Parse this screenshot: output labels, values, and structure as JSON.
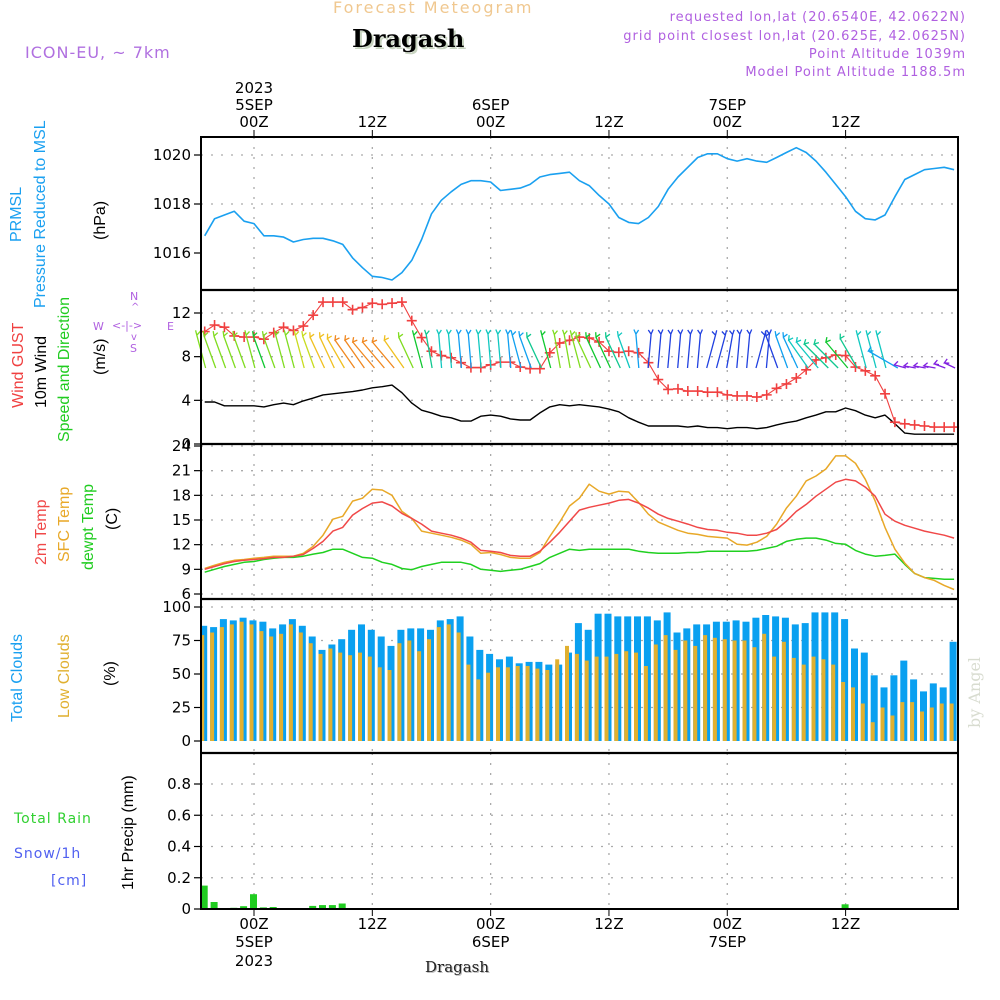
{
  "header": {
    "title_top": "Forecast Meteogram",
    "location": "Dragash",
    "model": "ICON-EU, ~ 7km",
    "requested": "requested lon,lat (20.6540E, 42.0622N)",
    "grid_point": "grid point closest lon,lat (20.625E, 42.0625N)",
    "point_altitude": "Point Altitude 1039m",
    "model_altitude": "Model Point Altitude 1188.5m"
  },
  "footer": {
    "location": "Dragash",
    "watermark": "by Angel"
  },
  "time_axis": {
    "ticks": [
      {
        "hour": 0,
        "label": "00Z",
        "date": "5SEP",
        "year": "2023"
      },
      {
        "hour": 12,
        "label": "12Z",
        "date": "",
        "year": ""
      },
      {
        "hour": 24,
        "label": "00Z",
        "date": "6SEP",
        "year": ""
      },
      {
        "hour": 36,
        "label": "12Z",
        "date": "",
        "year": ""
      },
      {
        "hour": 48,
        "label": "00Z",
        "date": "7SEP",
        "year": ""
      },
      {
        "hour": 60,
        "label": "12Z",
        "date": "",
        "year": ""
      }
    ],
    "start_hour": -5,
    "end_hour": 71
  },
  "labels": {
    "pressure": [
      "PRMSL",
      "Pressure Reduced to MSL",
      "(hPa)"
    ],
    "wind": [
      "Wind GUST",
      "10m Wind",
      "Speed and Direction",
      "(m/s)"
    ],
    "compass": {
      "n": "N",
      "s": "S",
      "w": "W",
      "e": "E"
    },
    "temp": [
      "2m Temp",
      "SFC Temp",
      "dewpt Temp",
      "(C)"
    ],
    "clouds": [
      "Total Clouds",
      "Low Clouds",
      "(%)"
    ],
    "precip": [
      "Total  Rain",
      "Snow/1h",
      "[cm]",
      "1hr Precip (mm)"
    ]
  },
  "colors": {
    "pressure": "#1aa0f0",
    "gust": "#f04040",
    "wind_speed": "#000000",
    "temp2m": "#f04848",
    "sfc_temp": "#e8a828",
    "dewpoint": "#20d020",
    "total_clouds": "#0aa0f0",
    "low_clouds": "#e0b030",
    "rain": "#20cc20"
  },
  "chart_data": [
    {
      "type": "line",
      "title": "PRMSL Pressure Reduced to MSL",
      "ylabel": "(hPa)",
      "ylim": [
        1014.7,
        1020.8
      ],
      "yticks": [
        1016,
        1018,
        1020
      ],
      "grid": true,
      "x_start_hour": -5,
      "series": [
        {
          "name": "PRMSL",
          "values": [
            1016.7,
            1017.4,
            1017.55,
            1017.7,
            1017.3,
            1017.2,
            1016.7,
            1016.7,
            1016.65,
            1016.45,
            1016.55,
            1016.6,
            1016.6,
            1016.5,
            1016.35,
            1015.8,
            1015.4,
            1015.05,
            1015.0,
            1014.9,
            1015.2,
            1015.7,
            1016.55,
            1017.6,
            1018.15,
            1018.5,
            1018.8,
            1018.95,
            1018.95,
            1018.9,
            1018.55,
            1018.6,
            1018.65,
            1018.8,
            1019.1,
            1019.2,
            1019.25,
            1019.3,
            1018.95,
            1018.75,
            1018.35,
            1018.0,
            1017.45,
            1017.25,
            1017.2,
            1017.45,
            1017.9,
            1018.6,
            1019.1,
            1019.5,
            1019.9,
            1020.05,
            1020.05,
            1019.85,
            1019.75,
            1019.85,
            1019.75,
            1019.7,
            1019.9,
            1020.1,
            1020.3,
            1020.1,
            1019.75,
            1019.3,
            1018.8,
            1018.3,
            1017.7,
            1017.4,
            1017.35,
            1017.55,
            1018.3,
            1019.0,
            1019.2,
            1019.4,
            1019.45,
            1019.5,
            1019.4
          ]
        }
      ]
    },
    {
      "type": "line",
      "title": "Wind GUST / 10m Wind Speed and Direction",
      "ylabel": "(m/s)",
      "ylim": [
        0,
        14
      ],
      "yticks": [
        0,
        4,
        8,
        12
      ],
      "grid": true,
      "x_start_hour": -5,
      "series": [
        {
          "name": "Wind GUST",
          "values": [
            10.3,
            10.9,
            10.7,
            9.9,
            9.8,
            9.8,
            9.6,
            10.2,
            10.7,
            10.4,
            10.8,
            11.8,
            13.0,
            13.0,
            13.0,
            12.3,
            12.5,
            12.9,
            12.8,
            12.9,
            13.0,
            11.3,
            9.75,
            8.5,
            8.1,
            7.9,
            7.45,
            7.0,
            7.0,
            7.25,
            7.5,
            7.5,
            7.05,
            6.9,
            6.9,
            8.35,
            9.25,
            9.5,
            9.8,
            9.7,
            9.35,
            8.5,
            8.4,
            8.5,
            8.35,
            7.45,
            5.9,
            5.0,
            5.05,
            4.85,
            4.85,
            4.75,
            4.75,
            4.5,
            4.4,
            4.4,
            4.3,
            4.5,
            5.1,
            5.5,
            6.05,
            6.8,
            7.7,
            7.9,
            8.15,
            8.1,
            7.05,
            6.7,
            6.25,
            4.6,
            2.0,
            1.85,
            1.75,
            1.65,
            1.55,
            1.55,
            1.55
          ]
        },
        {
          "name": "10m Wind",
          "values": [
            3.85,
            3.85,
            3.5,
            3.5,
            3.5,
            3.5,
            3.4,
            3.6,
            3.75,
            3.6,
            3.95,
            4.2,
            4.5,
            4.6,
            4.7,
            4.8,
            4.95,
            5.15,
            5.25,
            5.4,
            4.7,
            3.75,
            3.1,
            2.85,
            2.55,
            2.4,
            2.1,
            2.1,
            2.55,
            2.65,
            2.55,
            2.3,
            2.2,
            2.2,
            2.85,
            3.4,
            3.6,
            3.5,
            3.6,
            3.5,
            3.4,
            3.2,
            2.95,
            2.4,
            2.0,
            1.65,
            1.65,
            1.65,
            1.65,
            1.55,
            1.65,
            1.5,
            1.5,
            1.4,
            1.5,
            1.5,
            1.4,
            1.5,
            1.75,
            1.95,
            2.1,
            2.4,
            2.65,
            2.95,
            2.95,
            3.3,
            3.05,
            2.65,
            2.4,
            2.65,
            1.85,
            1.0,
            0.9,
            0.9,
            0.9,
            0.9,
            0.9
          ]
        },
        {
          "name": "Wind direction (deg from)",
          "values": [
            15,
            20,
            20,
            20,
            20,
            15,
            20,
            20,
            15,
            15,
            15,
            20,
            25,
            25,
            30,
            35,
            35,
            40,
            40,
            40,
            35,
            25,
            15,
            10,
            5,
            5,
            5,
            5,
            5,
            5,
            5,
            5,
            15,
            20,
            25,
            15,
            10,
            10,
            15,
            25,
            25,
            25,
            25,
            20,
            5,
            355,
            355,
            355,
            355,
            355,
            355,
            345,
            345,
            350,
            355,
            355,
            345,
            355,
            20,
            20,
            25,
            35,
            40,
            45,
            45,
            40,
            30,
            15,
            15,
            15,
            60,
            75,
            80,
            80,
            80,
            70,
            65
          ]
        }
      ]
    },
    {
      "type": "line",
      "title": "2m Temp / SFC Temp / dewpt Temp",
      "ylabel": "(C)",
      "ylim": [
        6,
        24
      ],
      "yticks": [
        6,
        9,
        12,
        15,
        18,
        21,
        24
      ],
      "grid": true,
      "x_start_hour": -5,
      "series": [
        {
          "name": "2m Temp",
          "values": [
            9.0,
            9.35,
            9.7,
            9.95,
            10.1,
            10.2,
            10.3,
            10.45,
            10.45,
            10.6,
            10.8,
            11.55,
            12.4,
            13.65,
            14.1,
            15.6,
            16.4,
            17.05,
            17.2,
            16.7,
            15.8,
            15.2,
            14.5,
            13.65,
            13.4,
            13.15,
            12.8,
            12.3,
            11.3,
            11.2,
            11.05,
            10.7,
            10.6,
            10.6,
            11.2,
            12.3,
            13.5,
            14.85,
            16.2,
            16.55,
            16.8,
            17.05,
            17.4,
            17.5,
            17.05,
            16.45,
            15.7,
            15.2,
            14.85,
            14.5,
            14.1,
            13.85,
            13.75,
            13.5,
            13.4,
            13.15,
            13.15,
            13.4,
            13.85,
            14.85,
            16.05,
            16.9,
            17.9,
            18.75,
            19.6,
            19.95,
            19.75,
            19.0,
            17.9,
            15.7,
            14.85,
            14.35,
            14.0,
            13.65,
            13.4,
            13.15,
            12.8
          ]
        },
        {
          "name": "SFC Temp",
          "values": [
            9.1,
            9.5,
            9.85,
            10.1,
            10.2,
            10.35,
            10.45,
            10.6,
            10.6,
            10.6,
            10.95,
            11.8,
            13.15,
            15.1,
            15.45,
            17.3,
            17.65,
            18.75,
            18.65,
            18.0,
            16.05,
            15.2,
            13.65,
            13.4,
            13.15,
            12.9,
            12.55,
            12.05,
            10.95,
            11.05,
            10.8,
            10.45,
            10.35,
            10.35,
            11.05,
            13.0,
            14.75,
            16.7,
            17.65,
            19.35,
            18.5,
            18.15,
            18.5,
            18.4,
            17.15,
            15.7,
            14.75,
            14.25,
            13.75,
            13.4,
            13.25,
            13.0,
            12.9,
            12.8,
            12.05,
            11.95,
            12.3,
            13.0,
            14.5,
            16.45,
            17.9,
            19.75,
            20.35,
            21.2,
            22.8,
            22.8,
            21.9,
            19.95,
            17.3,
            14.1,
            11.45,
            9.75,
            8.5,
            8.0,
            7.65,
            7.05,
            6.55
          ]
        },
        {
          "name": "dewpt Temp",
          "values": [
            8.65,
            9.0,
            9.35,
            9.6,
            9.85,
            9.95,
            10.2,
            10.35,
            10.45,
            10.45,
            10.6,
            10.85,
            11.05,
            11.45,
            11.45,
            10.95,
            10.45,
            10.35,
            9.85,
            9.6,
            9.1,
            8.95,
            9.35,
            9.6,
            9.85,
            9.85,
            9.85,
            9.6,
            9.0,
            8.9,
            8.75,
            8.9,
            9.0,
            9.35,
            9.7,
            10.45,
            10.95,
            11.45,
            11.3,
            11.45,
            11.45,
            11.45,
            11.45,
            11.45,
            11.2,
            11.05,
            10.95,
            10.95,
            10.95,
            11.05,
            11.05,
            11.2,
            11.2,
            11.2,
            11.2,
            11.2,
            11.3,
            11.55,
            11.8,
            12.4,
            12.65,
            12.8,
            12.8,
            12.55,
            12.15,
            12.05,
            11.3,
            10.85,
            10.6,
            10.7,
            10.85,
            9.6,
            8.5,
            8.0,
            7.9,
            7.8,
            7.8
          ]
        }
      ]
    },
    {
      "type": "bar",
      "title": "Total Clouds / Low Clouds",
      "ylabel": "(%)",
      "ylim": [
        0,
        105
      ],
      "yticks": [
        0,
        25,
        50,
        75,
        100
      ],
      "grid": true,
      "x_start_hour": -5,
      "series": [
        {
          "name": "Total Clouds",
          "values": [
            86,
            85,
            91,
            90,
            92,
            90,
            89,
            84,
            87,
            91,
            86,
            78,
            68,
            72,
            76,
            83,
            87,
            83,
            78,
            71,
            83,
            84,
            84,
            83,
            90,
            91,
            93,
            78,
            68,
            65,
            61,
            63,
            58,
            59,
            59,
            57,
            57,
            66,
            88,
            83,
            95,
            95,
            93,
            93,
            93,
            93,
            90,
            96,
            81,
            84,
            87,
            87,
            89,
            89,
            90,
            89,
            92,
            94,
            93,
            92,
            87,
            88,
            96,
            96,
            96,
            91,
            69,
            66,
            49,
            40,
            49,
            60,
            46,
            37,
            43,
            40,
            74
          ]
        },
        {
          "name": "Low Clouds",
          "values": [
            79,
            81,
            85,
            87,
            89,
            87,
            82,
            78,
            80,
            87,
            81,
            73,
            65,
            69,
            66,
            64,
            66,
            63,
            55,
            53,
            73,
            75,
            67,
            76,
            85,
            87,
            81,
            57,
            46,
            51,
            55,
            55,
            56,
            56,
            54,
            53,
            61,
            71,
            65,
            60,
            63,
            63,
            65,
            67,
            66,
            56,
            72,
            79,
            68,
            75,
            71,
            79,
            77,
            76,
            75,
            75,
            70,
            80,
            63,
            74,
            62,
            57,
            63,
            61,
            57,
            44,
            40,
            28,
            14,
            25,
            19,
            29,
            29,
            22,
            25,
            28,
            28
          ]
        }
      ]
    },
    {
      "type": "bar",
      "title": "1hr Precip",
      "ylabel": "1hr Precip (mm)",
      "ylim": [
        0,
        0.98
      ],
      "yticks": [
        0,
        0.2,
        0.4,
        0.6,
        0.8
      ],
      "grid": true,
      "x_start_hour": -5,
      "series": [
        {
          "name": "Total Rain",
          "values": [
            0.15,
            0.045,
            0,
            0.008,
            0.018,
            0.095,
            0.01,
            0.013,
            0,
            0,
            0,
            0.02,
            0.025,
            0.025,
            0.035,
            0,
            0,
            0,
            0,
            0,
            0,
            0,
            0,
            0,
            0,
            0,
            0,
            0,
            0,
            0,
            0,
            0,
            0,
            0,
            0,
            0,
            0,
            0,
            0,
            0,
            0,
            0,
            0,
            0,
            0,
            0,
            0,
            0,
            0.004,
            0.004,
            0,
            0,
            0,
            0,
            0,
            0,
            0.004,
            0.004,
            0.004,
            0,
            0,
            0,
            0,
            0,
            0.004,
            0.03,
            0,
            0,
            0,
            0,
            0,
            0,
            0,
            0,
            0,
            0,
            0
          ]
        }
      ]
    }
  ]
}
